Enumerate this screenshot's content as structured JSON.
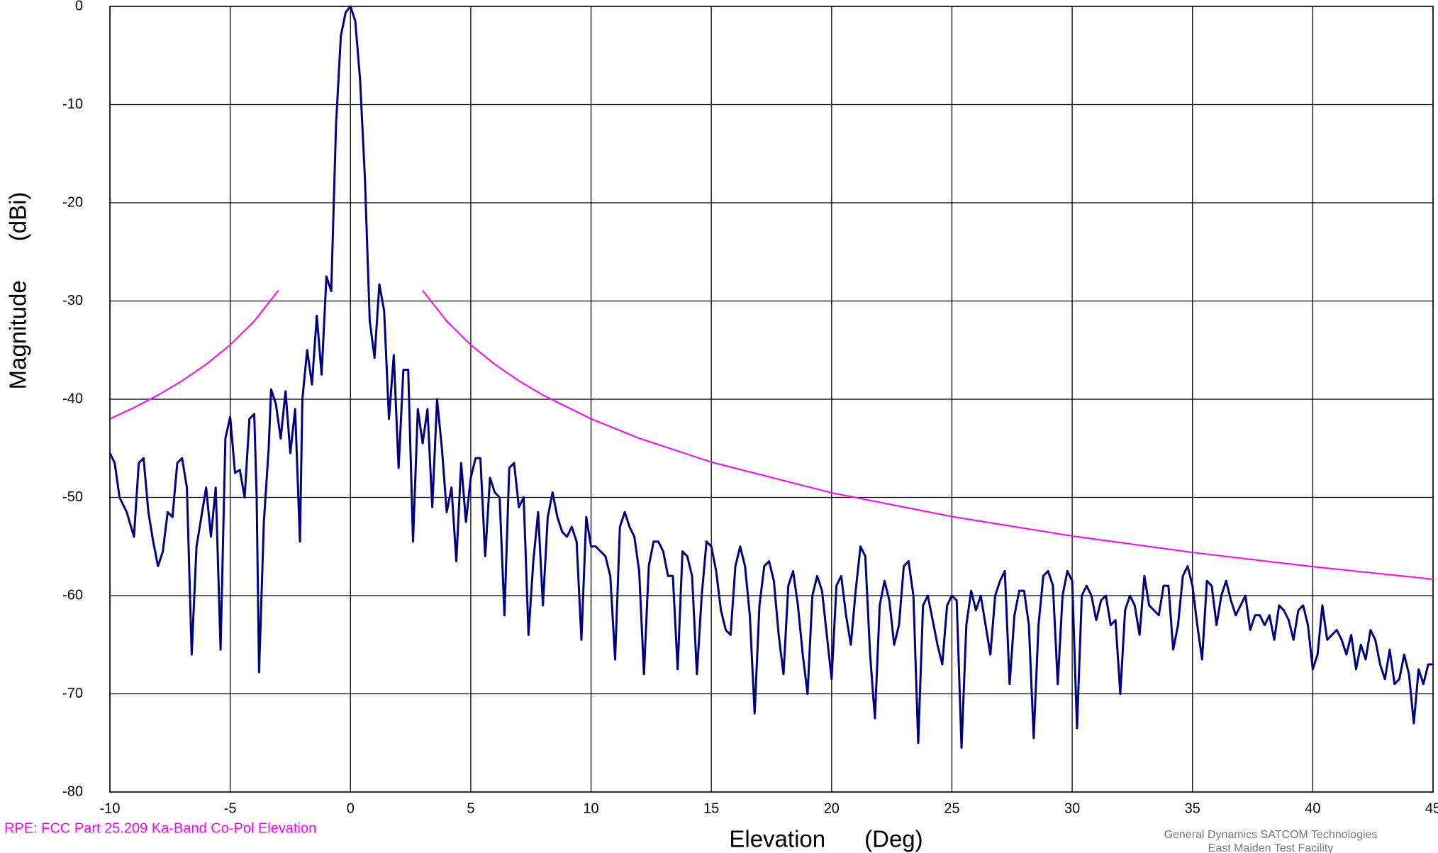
{
  "chart_data": {
    "type": "line",
    "xlabel": "Elevation      (Deg)",
    "ylabel": "Magnitude      (dBi)",
    "footnote_left": "RPE: FCC Part 25.209 Ka-Band Co-Pol Elevation",
    "footnote_right": [
      "General Dynamics SATCOM Technologies",
      "East Maiden Test Facility"
    ],
    "xlim": [
      -10,
      45
    ],
    "xticks": [
      -10,
      -5,
      0,
      5,
      10,
      15,
      20,
      25,
      30,
      35,
      40,
      45
    ],
    "ylim": [
      -80,
      0
    ],
    "yticks": [
      0,
      -10,
      -20,
      -30,
      -40,
      -50,
      -60,
      -70,
      -80
    ],
    "grid": true,
    "series": [
      {
        "color": "#000080",
        "x": [
          -10,
          -9.8,
          -9.6,
          -9.3,
          -9.0,
          -8.8,
          -8.6,
          -8.4,
          -8.2,
          -8.0,
          -7.8,
          -7.6,
          -7.4,
          -7.2,
          -7.0,
          -6.8,
          -6.6,
          -6.4,
          -6.2,
          -6.0,
          -5.8,
          -5.6,
          -5.4,
          -5.2,
          -5.0,
          -4.8,
          -4.6,
          -4.4,
          -4.2,
          -4.0,
          -3.9,
          -3.8,
          -3.6,
          -3.4,
          -3.3,
          -3.1,
          -2.9,
          -2.7,
          -2.5,
          -2.3,
          -2.1,
          -2.0,
          -1.8,
          -1.6,
          -1.4,
          -1.2,
          -1.0,
          -0.8,
          -0.6,
          -0.4,
          -0.2,
          0,
          0.2,
          0.4,
          0.6,
          0.8,
          1.0,
          1.2,
          1.4,
          1.6,
          1.8,
          2.0,
          2.2,
          2.4,
          2.6,
          2.8,
          3.0,
          3.2,
          3.4,
          3.6,
          3.8,
          4.0,
          4.2,
          4.4,
          4.6,
          4.8,
          5.0,
          5.2,
          5.4,
          5.6,
          5.8,
          6.0,
          6.2,
          6.4,
          6.6,
          6.8,
          7.0,
          7.2,
          7.4,
          7.6,
          7.8,
          8.0,
          8.2,
          8.4,
          8.6,
          8.8,
          9.0,
          9.2,
          9.4,
          9.6,
          9.8,
          10.0,
          10.2,
          10.4,
          10.6,
          10.8,
          11.0,
          11.2,
          11.4,
          11.6,
          11.8,
          12.0,
          12.2,
          12.4,
          12.6,
          12.8,
          13.0,
          13.2,
          13.4,
          13.6,
          13.8,
          14.0,
          14.2,
          14.4,
          14.6,
          14.8,
          15.0,
          15.2,
          15.4,
          15.6,
          15.8,
          16.0,
          16.2,
          16.4,
          16.6,
          16.8,
          17.0,
          17.2,
          17.4,
          17.6,
          17.8,
          18.0,
          18.2,
          18.4,
          18.6,
          18.8,
          19.0,
          19.2,
          19.4,
          19.6,
          19.8,
          20.0,
          20.2,
          20.4,
          20.6,
          20.8,
          21.0,
          21.2,
          21.4,
          21.6,
          21.8,
          22.0,
          22.2,
          22.4,
          22.6,
          22.8,
          23.0,
          23.2,
          23.4,
          23.6,
          23.8,
          24.0,
          24.2,
          24.4,
          24.6,
          24.8,
          25.0,
          25.2,
          25.4,
          25.6,
          25.8,
          26.0,
          26.2,
          26.4,
          26.6,
          26.8,
          27.0,
          27.2,
          27.4,
          27.6,
          27.8,
          28.0,
          28.2,
          28.4,
          28.6,
          28.8,
          29.0,
          29.2,
          29.4,
          29.6,
          29.8,
          30.0,
          30.2,
          30.4,
          30.6,
          30.8,
          31.0,
          31.2,
          31.4,
          31.6,
          31.8,
          32.0,
          32.2,
          32.4,
          32.6,
          32.8,
          33.0,
          33.2,
          33.4,
          33.6,
          33.8,
          34.0,
          34.2,
          34.4,
          34.6,
          34.8,
          35.0,
          35.2,
          35.4,
          35.6,
          35.8,
          36.0,
          36.2,
          36.4,
          36.6,
          36.8,
          37.0,
          37.2,
          37.4,
          37.6,
          37.8,
          38.0,
          38.2,
          38.4,
          38.6,
          38.8,
          39.0,
          39.2,
          39.4,
          39.6,
          39.8,
          40.0,
          40.2,
          40.4,
          40.6,
          40.8,
          41.0,
          41.2,
          41.4,
          41.6,
          41.8,
          42.0,
          42.2,
          42.4,
          42.6,
          42.8,
          43.0,
          43.2,
          43.4,
          43.6,
          43.8,
          44.0,
          44.2,
          44.4,
          44.6,
          44.8,
          45.0
        ],
        "values": [
          -45.5,
          -46.5,
          -50,
          -51.5,
          -54,
          -46.5,
          -46,
          -51.5,
          -54.5,
          -57,
          -55.5,
          -51.5,
          -52,
          -46.5,
          -46,
          -49,
          -66,
          -55,
          -52,
          -49,
          -54,
          -49,
          -65.5,
          -44,
          -41.8,
          -47.5,
          -47.2,
          -50,
          -42,
          -41.5,
          -50,
          -67.8,
          -52.5,
          -45,
          -39,
          -40.5,
          -44,
          -39.2,
          -45.5,
          -41,
          -54.5,
          -40,
          -35,
          -38.5,
          -31.5,
          -37.5,
          -27.5,
          -29,
          -12,
          -3,
          -0.6,
          0,
          -1.5,
          -7.5,
          -17.5,
          -32,
          -35.8,
          -28.3,
          -31,
          -42,
          -35.5,
          -47,
          -37,
          -37,
          -54.5,
          -41,
          -44.5,
          -41,
          -51,
          -40,
          -45,
          -51.5,
          -49,
          -56.5,
          -46.5,
          -52.5,
          -48,
          -46,
          -46,
          -56,
          -48,
          -49.5,
          -50,
          -62,
          -47,
          -46.5,
          -51,
          -50,
          -64,
          -56.5,
          -51.5,
          -61,
          -52,
          -49.5,
          -52,
          -53.5,
          -54,
          -53,
          -54.5,
          -64.5,
          -52,
          -55,
          -55,
          -55.5,
          -56,
          -58,
          -66.5,
          -53,
          -51.5,
          -53,
          -54,
          -57.5,
          -68,
          -57,
          -54.5,
          -54.5,
          -55.5,
          -58,
          -58,
          -67.5,
          -55.5,
          -56,
          -58,
          -68,
          -60,
          -54.5,
          -55,
          -57.5,
          -61.5,
          -63.5,
          -64,
          -57,
          -55,
          -57,
          -62,
          -72,
          -61,
          -57,
          -56.5,
          -58.5,
          -64,
          -68,
          -59,
          -57.5,
          -61,
          -66,
          -70,
          -60,
          -58,
          -59.5,
          -64,
          -68.5,
          -59,
          -58,
          -62,
          -65,
          -59.5,
          -55,
          -56,
          -66,
          -72.5,
          -61,
          -58.5,
          -60.5,
          -65,
          -63,
          -57,
          -56.5,
          -60,
          -75,
          -61,
          -60,
          -62.5,
          -65,
          -67,
          -61,
          -60,
          -60.5,
          -75.5,
          -63,
          -59.5,
          -61.5,
          -60,
          -63,
          -66,
          -60,
          -58.5,
          -57.5,
          -69,
          -62,
          -59.5,
          -59.5,
          -63,
          -74.5,
          -63,
          -58,
          -57.5,
          -59,
          -69,
          -60,
          -57.5,
          -58.5,
          -73.5,
          -60,
          -59,
          -60,
          -62.5,
          -60.5,
          -60,
          -63,
          -62.5,
          -70,
          -61.5,
          -60,
          -61,
          -64,
          -58,
          -61,
          -61.5,
          -62,
          -59,
          -59,
          -65.5,
          -63,
          -58,
          -57,
          -59,
          -63,
          -66.5,
          -58.5,
          -59,
          -63,
          -60,
          -58.5,
          -60.5,
          -62,
          -61,
          -60,
          -63.5,
          -62,
          -62,
          -63,
          -62,
          -64.5,
          -61,
          -61.5,
          -62.5,
          -64.5,
          -61.5,
          -61,
          -63,
          -67.5,
          -66,
          -61,
          -64.5,
          -64,
          -63.5,
          -64.5,
          -66,
          -64,
          -67.5,
          -65,
          -66.5,
          -63.5,
          -64.5,
          -67,
          -68.5,
          -65.5,
          -69,
          -68.5,
          -66,
          -68,
          -73,
          -67.5,
          -69,
          -67,
          -67
        ]
      },
      {
        "name": "RPE: FCC Part 25.209 Ka-Band Co-Pol Elevation",
        "color": "#ff00ff",
        "x": [
          -10,
          -9,
          -8,
          -7,
          -6,
          -5,
          -4,
          -3,
          0,
          3,
          4,
          5,
          6,
          7,
          8,
          10,
          12,
          15,
          20,
          25,
          30,
          35,
          40,
          45
        ],
        "values": [
          -42,
          -40.86,
          -39.58,
          -38.13,
          -36.45,
          -34.47,
          -32.05,
          -28.93,
          null,
          -28.93,
          -32.05,
          -34.47,
          -36.45,
          -38.13,
          -39.58,
          -42,
          -43.98,
          -46.4,
          -49.53,
          -51.95,
          -53.93,
          -55.6,
          -57.05,
          -58.33
        ]
      }
    ]
  }
}
